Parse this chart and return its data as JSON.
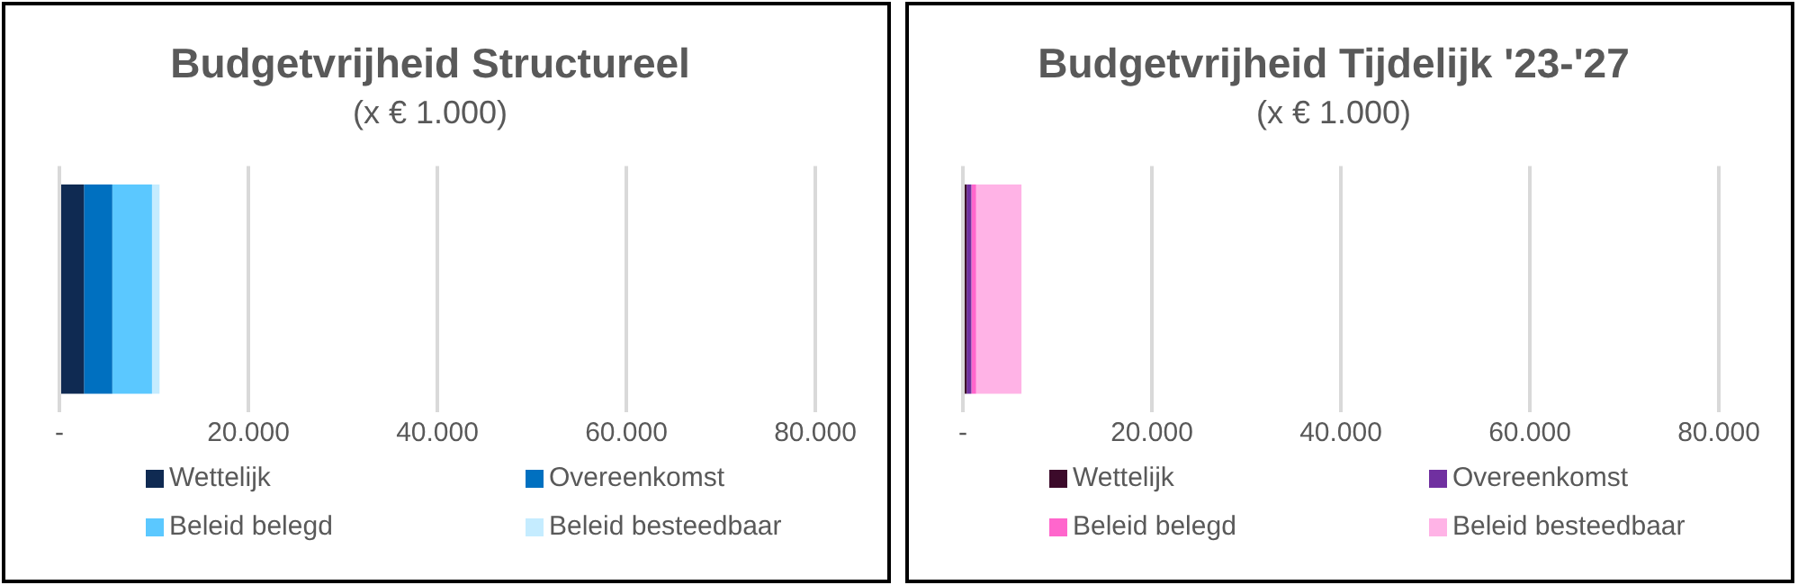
{
  "chart_data": [
    {
      "type": "bar",
      "orientation": "horizontal",
      "stacked": true,
      "title": "Budgetvrijheid Structureel",
      "subtitle": "(x € 1.000)",
      "categories": [
        null
      ],
      "series": [
        {
          "name": "Wettelijk",
          "color": "#0f2a52",
          "values": [
            2600
          ]
        },
        {
          "name": "Overeenkomst",
          "color": "#0070c0",
          "values": [
            3000
          ]
        },
        {
          "name": "Beleid belegd",
          "color": "#5bc8ff",
          "values": [
            4200
          ]
        },
        {
          "name": "Beleid besteedbaar",
          "color": "#c5ecff",
          "values": [
            800
          ]
        }
      ],
      "xlim": [
        0,
        80000
      ],
      "xticks": [
        {
          "value": 0,
          "label": "-"
        },
        {
          "value": 20000,
          "label": "20.000"
        },
        {
          "value": 40000,
          "label": "40.000"
        },
        {
          "value": 60000,
          "label": "60.000"
        },
        {
          "value": 80000,
          "label": "80.000"
        }
      ],
      "grid": "x",
      "legend": "bottom",
      "tick_labels": "x"
    },
    {
      "type": "bar",
      "orientation": "horizontal",
      "stacked": true,
      "title": "Budgetvrijheid Tijdelijk '23-'27",
      "subtitle": "(x € 1.000)",
      "categories": [
        null
      ],
      "series": [
        {
          "name": "Wettelijk",
          "color": "#3c0a2a",
          "values": [
            400
          ]
        },
        {
          "name": "Overeenkomst",
          "color": "#7030a0",
          "values": [
            500
          ]
        },
        {
          "name": "Beleid belegd",
          "color": "#ff66cc",
          "values": [
            500
          ]
        },
        {
          "name": "Beleid besteedbaar",
          "color": "#ffb3e6",
          "values": [
            4800
          ]
        }
      ],
      "xlim": [
        0,
        80000
      ],
      "xticks": [
        {
          "value": 0,
          "label": "-"
        },
        {
          "value": 20000,
          "label": "20.000"
        },
        {
          "value": 40000,
          "label": "40.000"
        },
        {
          "value": 60000,
          "label": "60.000"
        },
        {
          "value": 80000,
          "label": "80.000"
        }
      ],
      "grid": "x",
      "legend": "bottom",
      "tick_labels": "x"
    }
  ]
}
